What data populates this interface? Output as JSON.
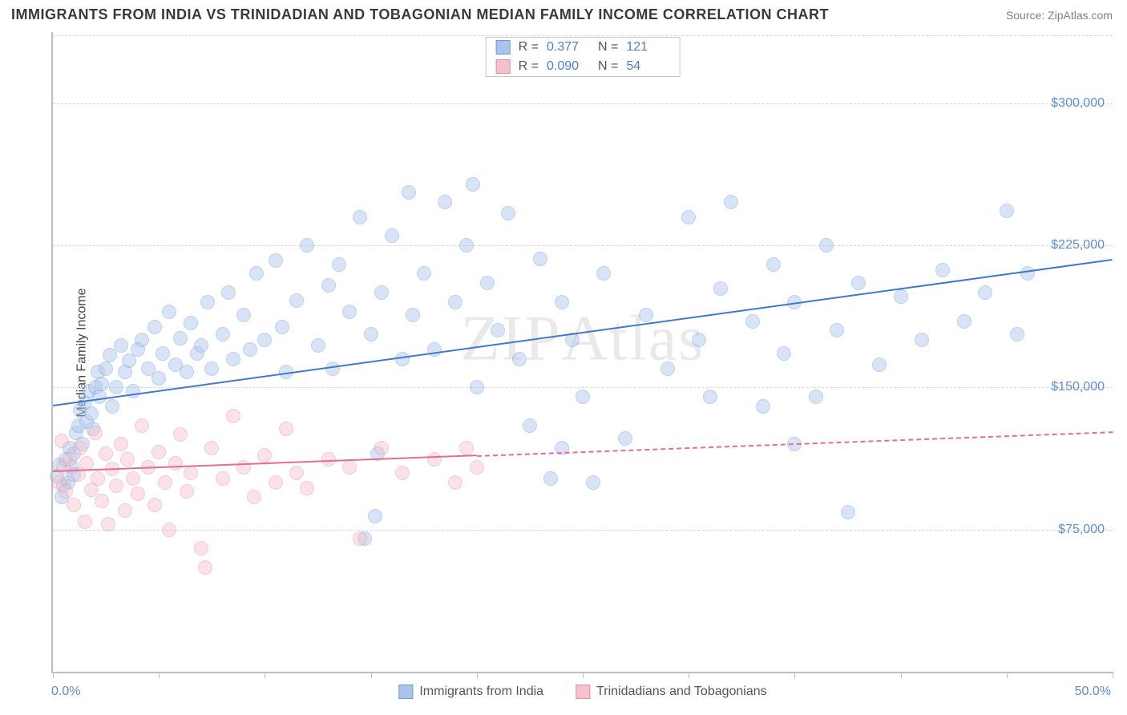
{
  "title": "IMMIGRANTS FROM INDIA VS TRINIDADIAN AND TOBAGONIAN MEDIAN FAMILY INCOME CORRELATION CHART",
  "source": "Source: ZipAtlas.com",
  "ylabel": "Median Family Income",
  "watermark": "ZIPAtlas",
  "chart": {
    "type": "scatter",
    "background_color": "#ffffff",
    "grid_color": "#d8d8d8",
    "axis_color": "#bfbfbf",
    "tick_label_color": "#5b8dd6",
    "xlim": [
      0,
      50
    ],
    "ylim": [
      0,
      337500
    ],
    "y_gridlines": [
      75000,
      150000,
      225000,
      300000
    ],
    "y_tick_labels": [
      "$75,000",
      "$150,000",
      "$225,000",
      "$300,000"
    ],
    "x_ticks": [
      0,
      5,
      10,
      15,
      20,
      25,
      30,
      35,
      40,
      45,
      50
    ],
    "x_axis_labels": {
      "left": "0.0%",
      "right": "50.0%"
    },
    "marker_radius": 9,
    "marker_opacity": 0.45,
    "series": [
      {
        "name": "Immigrants from India",
        "color_fill": "#a9c4ec",
        "color_stroke": "#6f9ad8",
        "trend_color": "#3f78d0",
        "trend_width": 2.5,
        "R": "0.377",
        "N": "121",
        "trend": {
          "x1": 0,
          "y1": 141000,
          "x2": 50,
          "y2": 218000,
          "dash_from_x": 50
        },
        "points": [
          [
            0.3,
            109000
          ],
          [
            0.5,
            98000
          ],
          [
            0.6,
            112000
          ],
          [
            0.7,
            100000
          ],
          [
            0.8,
            118000
          ],
          [
            0.9,
            108000
          ],
          [
            1.0,
            104000
          ],
          [
            1.0,
            115000
          ],
          [
            1.1,
            126000
          ],
          [
            1.2,
            130000
          ],
          [
            1.3,
            138000
          ],
          [
            1.4,
            120000
          ],
          [
            1.5,
            142000
          ],
          [
            1.6,
            132000
          ],
          [
            1.7,
            148000
          ],
          [
            1.8,
            136000
          ],
          [
            1.9,
            128000
          ],
          [
            2.0,
            150000
          ],
          [
            2.1,
            158000
          ],
          [
            2.2,
            145000
          ],
          [
            2.3,
            152000
          ],
          [
            2.5,
            160000
          ],
          [
            2.7,
            167000
          ],
          [
            2.8,
            140000
          ],
          [
            3.0,
            150000
          ],
          [
            3.2,
            172000
          ],
          [
            3.4,
            158000
          ],
          [
            3.6,
            164000
          ],
          [
            3.8,
            148000
          ],
          [
            4.0,
            170000
          ],
          [
            4.2,
            175000
          ],
          [
            4.5,
            160000
          ],
          [
            4.8,
            182000
          ],
          [
            5.0,
            155000
          ],
          [
            5.2,
            168000
          ],
          [
            5.5,
            190000
          ],
          [
            5.8,
            162000
          ],
          [
            6.0,
            176000
          ],
          [
            6.3,
            158000
          ],
          [
            6.5,
            184000
          ],
          [
            6.8,
            168000
          ],
          [
            7.0,
            172000
          ],
          [
            7.3,
            195000
          ],
          [
            7.5,
            160000
          ],
          [
            8.0,
            178000
          ],
          [
            8.3,
            200000
          ],
          [
            8.5,
            165000
          ],
          [
            9.0,
            188000
          ],
          [
            9.3,
            170000
          ],
          [
            9.6,
            210000
          ],
          [
            10.0,
            175000
          ],
          [
            10.5,
            217000
          ],
          [
            10.8,
            182000
          ],
          [
            11.0,
            158000
          ],
          [
            11.5,
            196000
          ],
          [
            12.0,
            225000
          ],
          [
            12.5,
            172000
          ],
          [
            13.0,
            204000
          ],
          [
            13.2,
            160000
          ],
          [
            13.5,
            215000
          ],
          [
            14.0,
            190000
          ],
          [
            14.5,
            240000
          ],
          [
            15.0,
            178000
          ],
          [
            15.3,
            115000
          ],
          [
            15.5,
            200000
          ],
          [
            16.0,
            230000
          ],
          [
            16.5,
            165000
          ],
          [
            16.8,
            253000
          ],
          [
            17.0,
            188000
          ],
          [
            17.5,
            210000
          ],
          [
            18.0,
            170000
          ],
          [
            18.5,
            248000
          ],
          [
            19.0,
            195000
          ],
          [
            19.5,
            225000
          ],
          [
            19.8,
            257000
          ],
          [
            20.0,
            150000
          ],
          [
            20.5,
            205000
          ],
          [
            21.0,
            180000
          ],
          [
            21.5,
            242000
          ],
          [
            22.0,
            165000
          ],
          [
            22.5,
            130000
          ],
          [
            23.0,
            218000
          ],
          [
            23.5,
            102000
          ],
          [
            24.0,
            195000
          ],
          [
            24.5,
            175000
          ],
          [
            25.0,
            145000
          ],
          [
            25.5,
            100000
          ],
          [
            26.0,
            210000
          ],
          [
            27.0,
            123000
          ],
          [
            28.0,
            188000
          ],
          [
            29.0,
            160000
          ],
          [
            24.0,
            118000
          ],
          [
            30.0,
            240000
          ],
          [
            30.5,
            175000
          ],
          [
            31.0,
            145000
          ],
          [
            31.5,
            202000
          ],
          [
            32.0,
            248000
          ],
          [
            33.0,
            185000
          ],
          [
            33.5,
            140000
          ],
          [
            34.0,
            215000
          ],
          [
            34.5,
            168000
          ],
          [
            35.0,
            195000
          ],
          [
            36.0,
            145000
          ],
          [
            36.5,
            225000
          ],
          [
            37.0,
            180000
          ],
          [
            37.5,
            84000
          ],
          [
            38.0,
            205000
          ],
          [
            39.0,
            162000
          ],
          [
            40.0,
            198000
          ],
          [
            41.0,
            175000
          ],
          [
            42.0,
            212000
          ],
          [
            43.0,
            185000
          ],
          [
            44.0,
            200000
          ],
          [
            45.0,
            243000
          ],
          [
            45.5,
            178000
          ],
          [
            46.0,
            210000
          ],
          [
            35.0,
            120000
          ],
          [
            15.2,
            82000
          ],
          [
            14.7,
            70000
          ],
          [
            0.4,
            92000
          ],
          [
            0.2,
            103000
          ]
        ]
      },
      {
        "name": "Trinidadians and Tobagonians",
        "color_fill": "#f5c1cd",
        "color_stroke": "#e88ba3",
        "trend_color": "#e46e8f",
        "trend_width": 2,
        "R": "0.090",
        "N": "54",
        "trend": {
          "x1": 0,
          "y1": 106000,
          "x2": 50,
          "y2": 127000,
          "dash_from_x": 20
        },
        "points": [
          [
            0.3,
            100000
          ],
          [
            0.5,
            108000
          ],
          [
            0.6,
            95000
          ],
          [
            0.8,
            112000
          ],
          [
            1.0,
            88000
          ],
          [
            1.2,
            104000
          ],
          [
            1.3,
            118000
          ],
          [
            1.5,
            79000
          ],
          [
            1.6,
            110000
          ],
          [
            1.8,
            96000
          ],
          [
            2.0,
            126000
          ],
          [
            2.1,
            102000
          ],
          [
            2.3,
            90000
          ],
          [
            2.5,
            115000
          ],
          [
            2.6,
            78000
          ],
          [
            2.8,
            107000
          ],
          [
            3.0,
            98000
          ],
          [
            3.2,
            120000
          ],
          [
            3.4,
            85000
          ],
          [
            3.5,
            112000
          ],
          [
            3.8,
            102000
          ],
          [
            4.0,
            94000
          ],
          [
            4.2,
            130000
          ],
          [
            4.5,
            108000
          ],
          [
            4.8,
            88000
          ],
          [
            5.0,
            116000
          ],
          [
            5.3,
            100000
          ],
          [
            5.5,
            75000
          ],
          [
            5.8,
            110000
          ],
          [
            6.0,
            125000
          ],
          [
            6.3,
            95000
          ],
          [
            6.5,
            105000
          ],
          [
            7.0,
            65000
          ],
          [
            7.2,
            55000
          ],
          [
            7.5,
            118000
          ],
          [
            8.0,
            102000
          ],
          [
            8.5,
            135000
          ],
          [
            9.0,
            108000
          ],
          [
            9.5,
            92000
          ],
          [
            10.0,
            114000
          ],
          [
            10.5,
            100000
          ],
          [
            11.0,
            128000
          ],
          [
            11.5,
            105000
          ],
          [
            12.0,
            97000
          ],
          [
            13.0,
            112000
          ],
          [
            14.0,
            108000
          ],
          [
            14.5,
            70000
          ],
          [
            15.5,
            118000
          ],
          [
            16.5,
            105000
          ],
          [
            18.0,
            112000
          ],
          [
            19.0,
            100000
          ],
          [
            19.5,
            118000
          ],
          [
            20.0,
            108000
          ],
          [
            0.4,
            122000
          ]
        ]
      }
    ]
  },
  "legend_bottom": [
    {
      "label": "Immigrants from India",
      "fill": "#a9c4ec",
      "stroke": "#6f9ad8"
    },
    {
      "label": "Trinidadians and Tobagonians",
      "fill": "#f5c1cd",
      "stroke": "#e88ba3"
    }
  ]
}
